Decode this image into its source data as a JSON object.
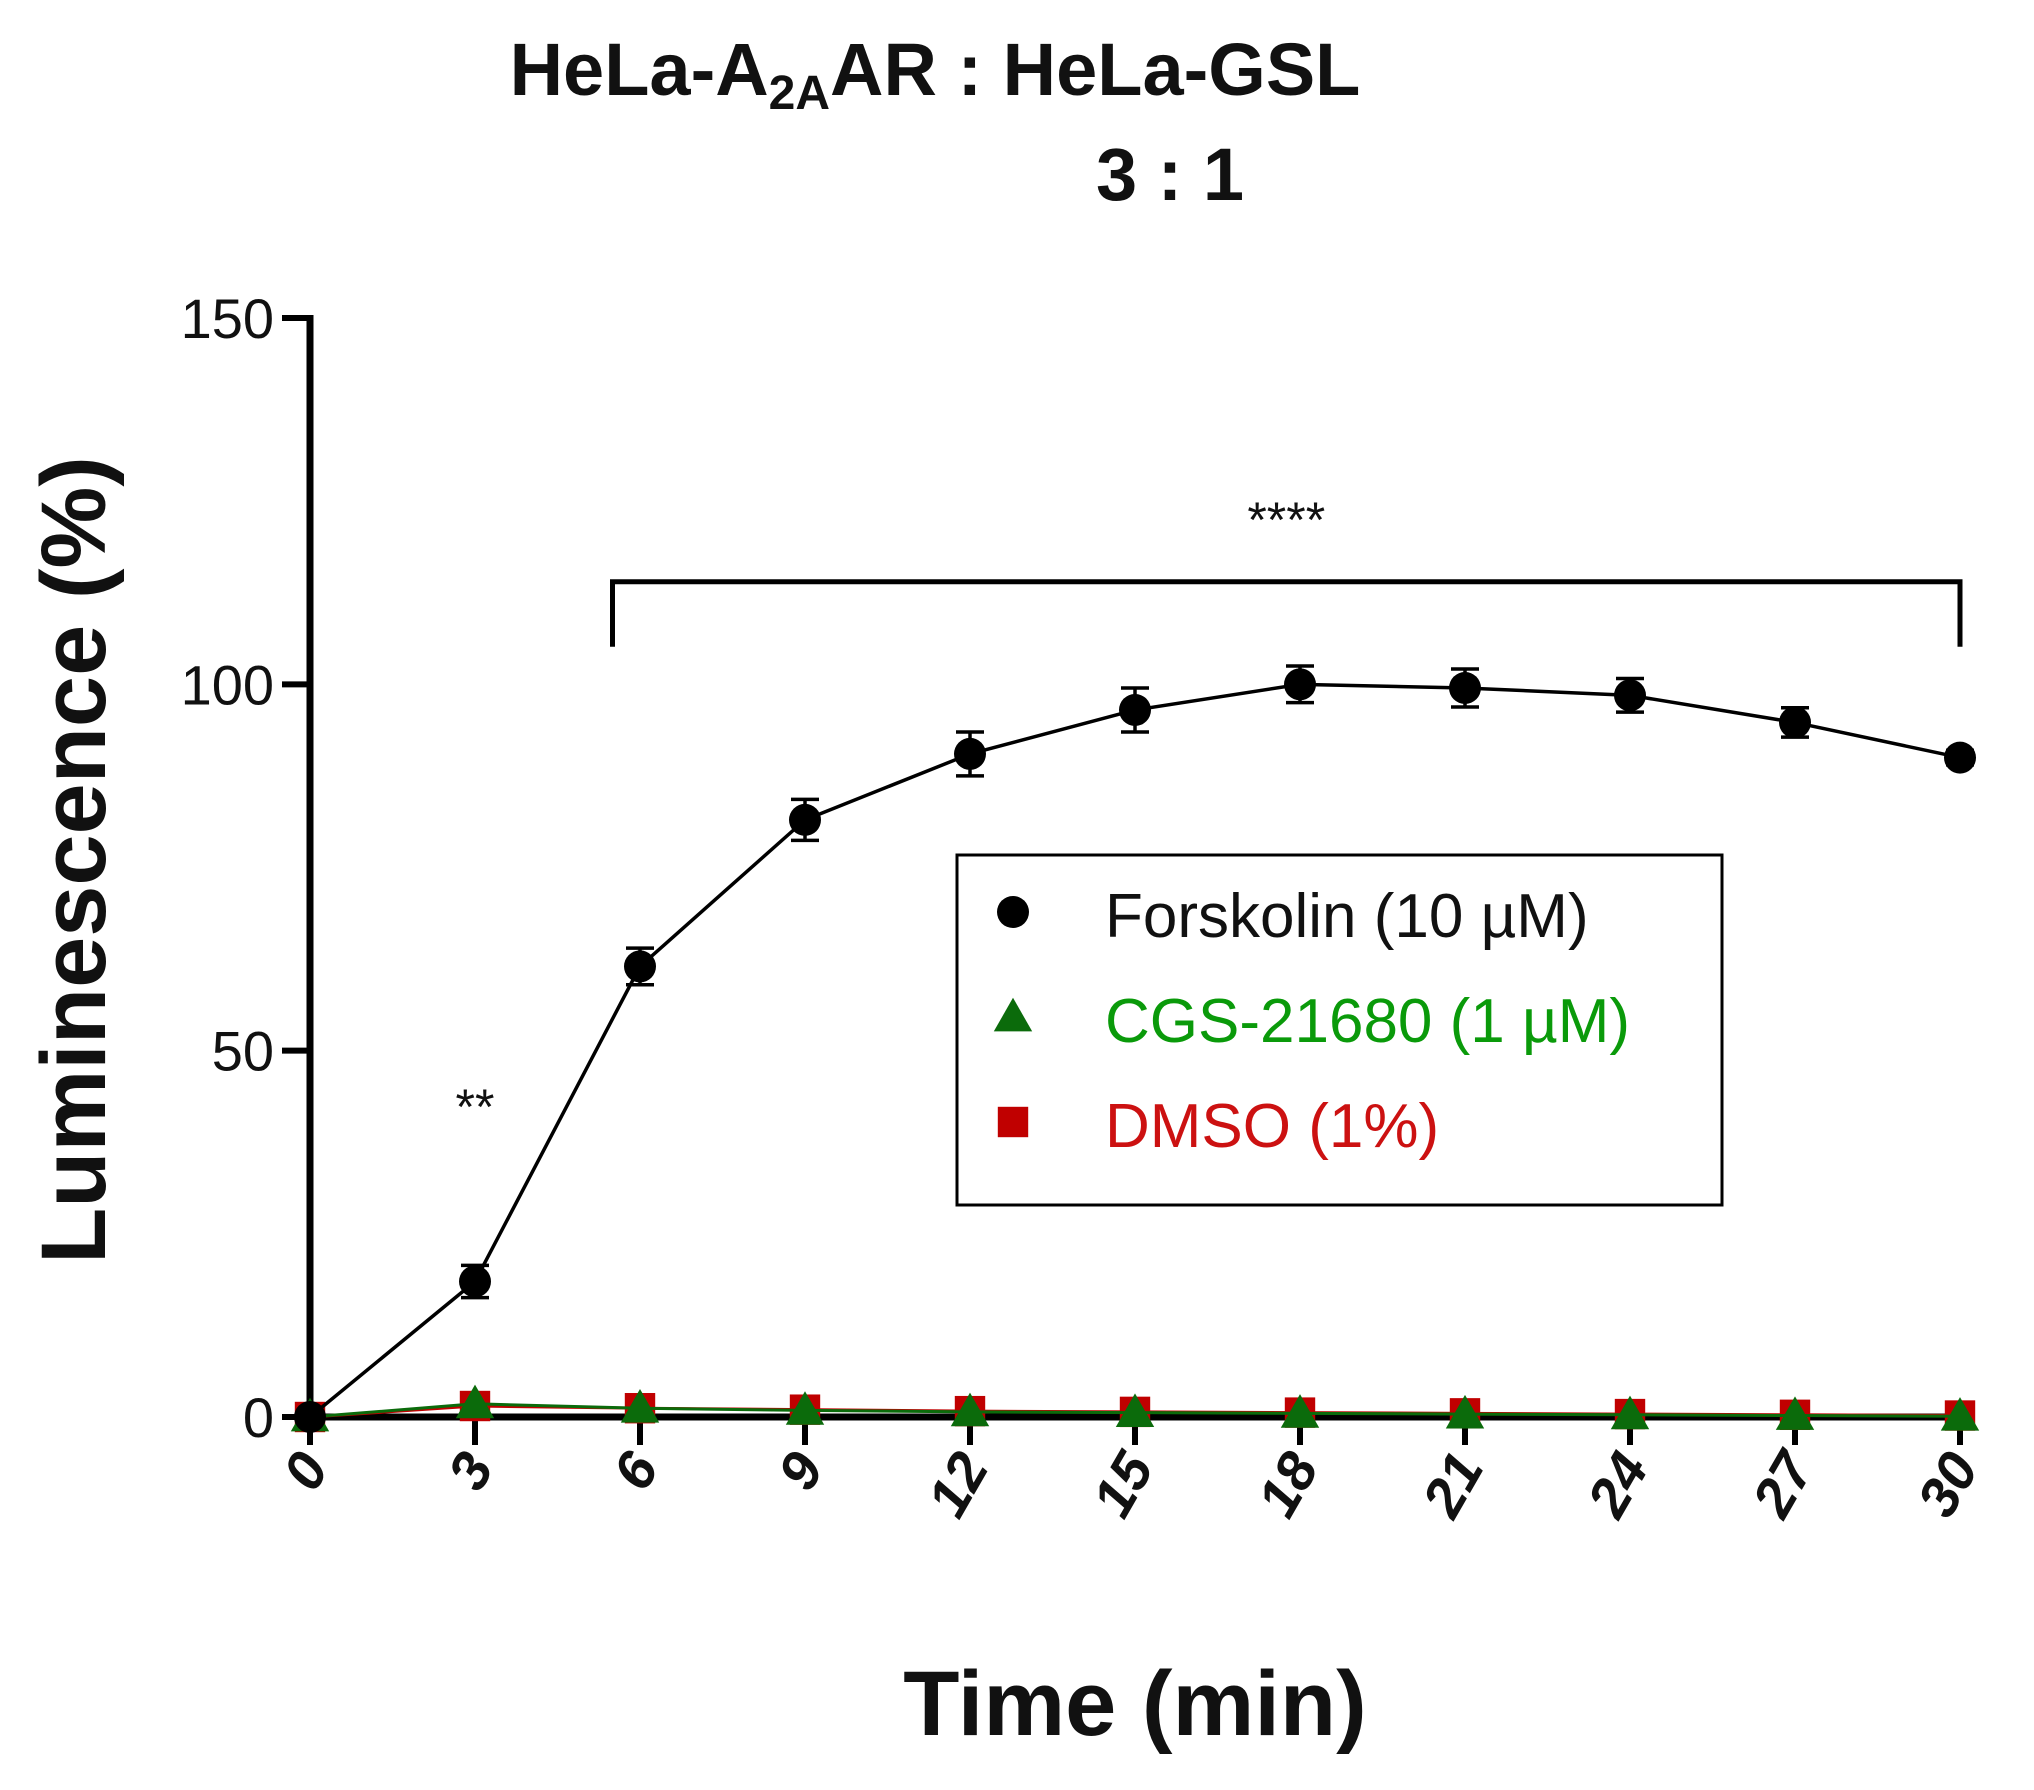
{
  "chart_data": {
    "type": "line",
    "title_line1_prefix": "HeLa-A",
    "title_line1_subscript": "2A",
    "title_line1_suffix": "AR : HeLa-GSL",
    "title_line2": "3 : 1",
    "xlabel": "Time (min)",
    "ylabel": "Luminescence (%)",
    "ylim": [
      0,
      150
    ],
    "xlim": [
      0,
      30
    ],
    "yticks": [
      0,
      50,
      100,
      150
    ],
    "x": [
      0,
      3,
      6,
      9,
      12,
      15,
      18,
      21,
      24,
      27,
      30
    ],
    "series": [
      {
        "name": "Forskolin (10 µM)",
        "marker": "circle",
        "color": "#000000",
        "text_color": "#111111",
        "values": [
          0,
          18.5,
          61.5,
          81.5,
          90.5,
          96.5,
          100,
          99.5,
          98.5,
          94.8,
          90.0
        ],
        "errors": [
          0,
          2.2,
          2.5,
          2.8,
          3.0,
          3.0,
          2.5,
          2.6,
          2.3,
          2.0,
          1.0
        ]
      },
      {
        "name": "CGS-21680 (1 µM)",
        "marker": "triangle",
        "color": "#0b6b0b",
        "text_color": "#0a9a0a",
        "values": [
          0,
          1.8,
          1.2,
          0.9,
          0.7,
          0.6,
          0.5,
          0.4,
          0.3,
          0.2,
          0.1
        ]
      },
      {
        "name": "DMSO (1%)",
        "marker": "square",
        "color": "#c00000",
        "text_color": "#cc1111",
        "values": [
          0,
          1.5,
          1.2,
          1.0,
          0.8,
          0.7,
          0.6,
          0.5,
          0.4,
          0.3,
          0.2
        ]
      }
    ],
    "annotations": [
      {
        "text": "**",
        "x": 3,
        "y": 40
      },
      {
        "text": "****",
        "bracket_from": 5.5,
        "bracket_to": 30,
        "y": 114
      }
    ]
  }
}
